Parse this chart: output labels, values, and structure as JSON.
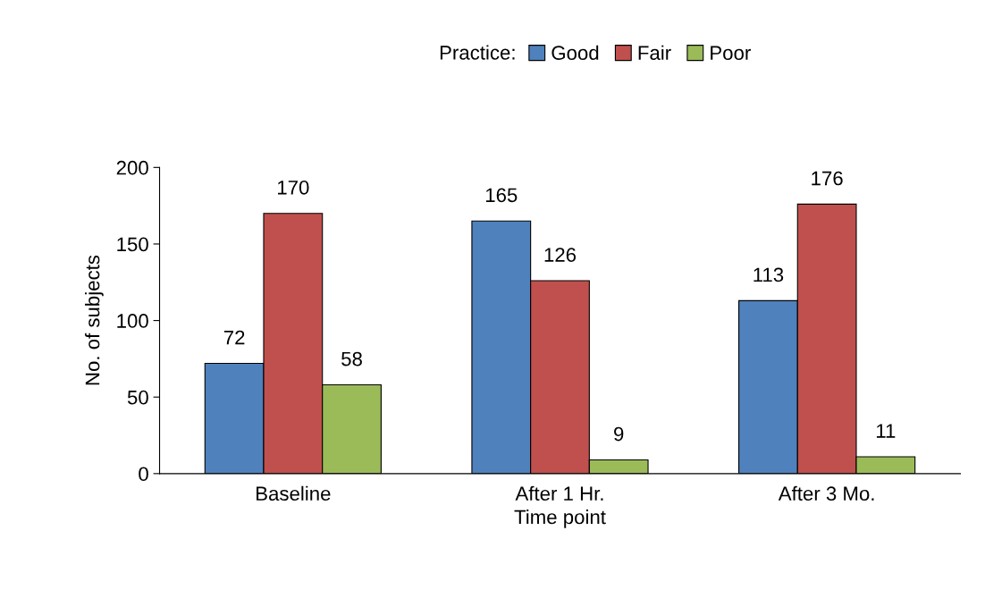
{
  "chart_data": {
    "type": "bar",
    "xlabel": "Time point",
    "ylabel": "No. of subjects",
    "legend_title": "Practice:",
    "categories": [
      "Baseline",
      "After 1 Hr.",
      "After 3 Mo."
    ],
    "series": [
      {
        "name": "Good",
        "color": "#4f81bd",
        "values": [
          72,
          165,
          113
        ]
      },
      {
        "name": "Fair",
        "color": "#c0504d",
        "values": [
          170,
          126,
          176
        ]
      },
      {
        "name": "Poor",
        "color": "#9bbb59",
        "values": [
          58,
          9,
          11
        ]
      }
    ],
    "ylim": [
      0,
      200
    ],
    "yticks": [
      0,
      50,
      100,
      150,
      200
    ],
    "grid": false,
    "legend": "top",
    "data_labels": true
  }
}
